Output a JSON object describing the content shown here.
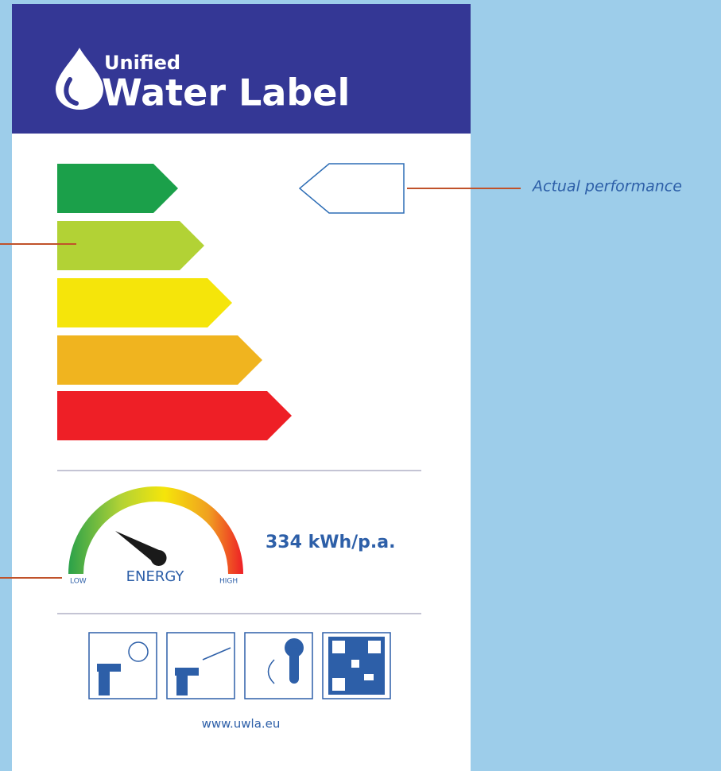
{
  "header": {
    "subtitle": "Unified",
    "title": "Water Label"
  },
  "annotation": "Actual performance",
  "gauge": {
    "low": "LOW",
    "label": "ENERGY",
    "high": "HIGH"
  },
  "energy": "334 kWh/p.a.",
  "footer": {
    "url": "www.uwla.eu"
  }
}
